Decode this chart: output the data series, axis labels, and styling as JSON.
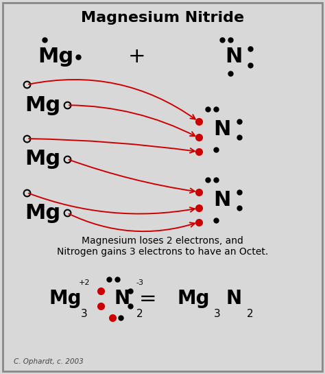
{
  "title": "Magnesium Nitride",
  "bg_color": "#d8d8d8",
  "border_color": "#888888",
  "text_color": "#000000",
  "red_color": "#cc0000",
  "caption": "Magnesium loses 2 electrons, and\nNitrogen gains 3 electrons to have an Octet.",
  "copyright": "C. Ophardt, c. 2003"
}
